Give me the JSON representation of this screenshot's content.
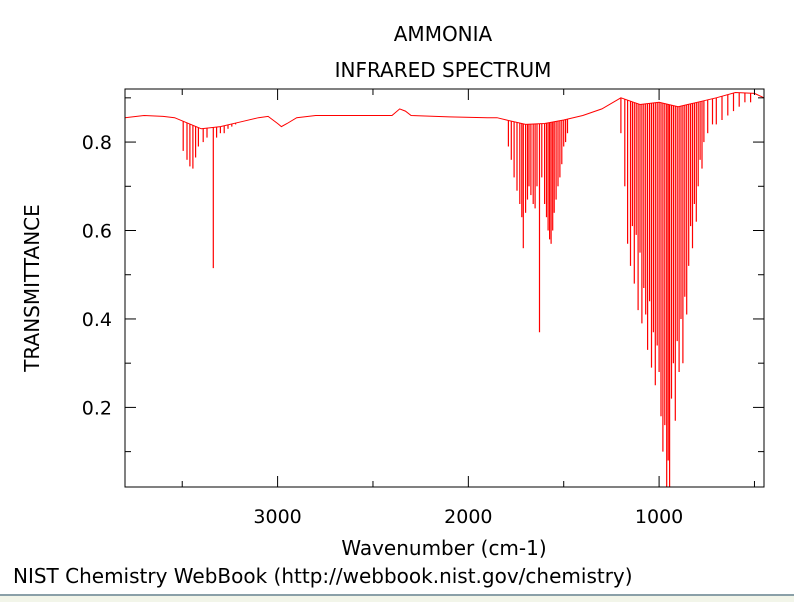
{
  "chart_data": {
    "type": "line",
    "title": "AMMONIA",
    "subtitle": "INFRARED SPECTRUM",
    "xlabel": "Wavenumber (cm-1)",
    "ylabel": "TRANSMITTANCE",
    "xlim": [
      3800,
      450
    ],
    "ylim": [
      0.02,
      0.92
    ],
    "x_ticks": [
      3000,
      2000,
      1000
    ],
    "y_ticks": [
      0.2,
      0.4,
      0.6,
      0.8
    ],
    "grid": false,
    "line_color": "#ff0000",
    "series": [
      {
        "baseline": [
          [
            3800,
            0.855
          ],
          [
            3700,
            0.86
          ],
          [
            3600,
            0.858
          ],
          [
            3540,
            0.855
          ],
          [
            3400,
            0.83
          ],
          [
            3300,
            0.835
          ],
          [
            3200,
            0.845
          ],
          [
            3100,
            0.855
          ],
          [
            3050,
            0.858
          ],
          [
            3000,
            0.842
          ],
          [
            2980,
            0.835
          ],
          [
            2950,
            0.842
          ],
          [
            2900,
            0.855
          ],
          [
            2800,
            0.86
          ],
          [
            2500,
            0.86
          ],
          [
            2400,
            0.86
          ],
          [
            2360,
            0.875
          ],
          [
            2330,
            0.87
          ],
          [
            2300,
            0.86
          ],
          [
            2100,
            0.857
          ],
          [
            1900,
            0.855
          ],
          [
            1850,
            0.855
          ],
          [
            1800,
            0.85
          ],
          [
            1700,
            0.84
          ],
          [
            1600,
            0.842
          ],
          [
            1500,
            0.85
          ],
          [
            1400,
            0.86
          ],
          [
            1300,
            0.875
          ],
          [
            1200,
            0.9
          ],
          [
            1100,
            0.885
          ],
          [
            1000,
            0.89
          ],
          [
            900,
            0.88
          ],
          [
            850,
            0.885
          ],
          [
            800,
            0.89
          ],
          [
            700,
            0.9
          ],
          [
            600,
            0.912
          ],
          [
            500,
            0.91
          ],
          [
            450,
            0.9
          ]
        ],
        "lines": [
          [
            3495,
            0.78
          ],
          [
            3475,
            0.76
          ],
          [
            3460,
            0.745
          ],
          [
            3444,
            0.74
          ],
          [
            3430,
            0.765
          ],
          [
            3415,
            0.79
          ],
          [
            3390,
            0.8
          ],
          [
            3370,
            0.81
          ],
          [
            3337,
            0.515
          ],
          [
            3320,
            0.81
          ],
          [
            3300,
            0.82
          ],
          [
            3280,
            0.82
          ],
          [
            3260,
            0.83
          ],
          [
            3240,
            0.835
          ],
          [
            3220,
            0.84
          ],
          [
            1790,
            0.79
          ],
          [
            1775,
            0.76
          ],
          [
            1760,
            0.72
          ],
          [
            1745,
            0.69
          ],
          [
            1730,
            0.66
          ],
          [
            1720,
            0.63
          ],
          [
            1712,
            0.56
          ],
          [
            1700,
            0.64
          ],
          [
            1690,
            0.67
          ],
          [
            1682,
            0.7
          ],
          [
            1672,
            0.68
          ],
          [
            1660,
            0.66
          ],
          [
            1650,
            0.65
          ],
          [
            1640,
            0.7
          ],
          [
            1627,
            0.37
          ],
          [
            1615,
            0.72
          ],
          [
            1600,
            0.66
          ],
          [
            1590,
            0.63
          ],
          [
            1582,
            0.6
          ],
          [
            1574,
            0.58
          ],
          [
            1566,
            0.57
          ],
          [
            1558,
            0.6
          ],
          [
            1550,
            0.64
          ],
          [
            1540,
            0.67
          ],
          [
            1530,
            0.7
          ],
          [
            1520,
            0.72
          ],
          [
            1510,
            0.75
          ],
          [
            1500,
            0.79
          ],
          [
            1490,
            0.8
          ],
          [
            1480,
            0.82
          ],
          [
            1200,
            0.82
          ],
          [
            1180,
            0.7
          ],
          [
            1165,
            0.57
          ],
          [
            1150,
            0.52
          ],
          [
            1140,
            0.61
          ],
          [
            1130,
            0.48
          ],
          [
            1120,
            0.59
          ],
          [
            1110,
            0.42
          ],
          [
            1100,
            0.55
          ],
          [
            1090,
            0.39
          ],
          [
            1080,
            0.47
          ],
          [
            1070,
            0.41
          ],
          [
            1060,
            0.33
          ],
          [
            1050,
            0.44
          ],
          [
            1040,
            0.29
          ],
          [
            1030,
            0.37
          ],
          [
            1020,
            0.25
          ],
          [
            1010,
            0.34
          ],
          [
            1000,
            0.28
          ],
          [
            990,
            0.18
          ],
          [
            980,
            0.1
          ],
          [
            970,
            0.16
          ],
          [
            960,
            0.02
          ],
          [
            952,
            0.08
          ],
          [
            945,
            0.02
          ],
          [
            935,
            0.22
          ],
          [
            925,
            0.3
          ],
          [
            915,
            0.17
          ],
          [
            905,
            0.35
          ],
          [
            895,
            0.28
          ],
          [
            885,
            0.4
          ],
          [
            875,
            0.3
          ],
          [
            865,
            0.45
          ],
          [
            855,
            0.41
          ],
          [
            845,
            0.52
          ],
          [
            835,
            0.61
          ],
          [
            825,
            0.56
          ],
          [
            815,
            0.66
          ],
          [
            805,
            0.62
          ],
          [
            795,
            0.7
          ],
          [
            785,
            0.76
          ],
          [
            775,
            0.74
          ],
          [
            765,
            0.8
          ],
          [
            745,
            0.82
          ],
          [
            720,
            0.84
          ],
          [
            700,
            0.84
          ],
          [
            670,
            0.85
          ],
          [
            640,
            0.86
          ],
          [
            610,
            0.87
          ],
          [
            580,
            0.88
          ],
          [
            550,
            0.89
          ],
          [
            520,
            0.89
          ]
        ]
      }
    ]
  },
  "footer": {
    "credit": "NIST Chemistry WebBook (http://webbook.nist.gov/chemistry)"
  }
}
